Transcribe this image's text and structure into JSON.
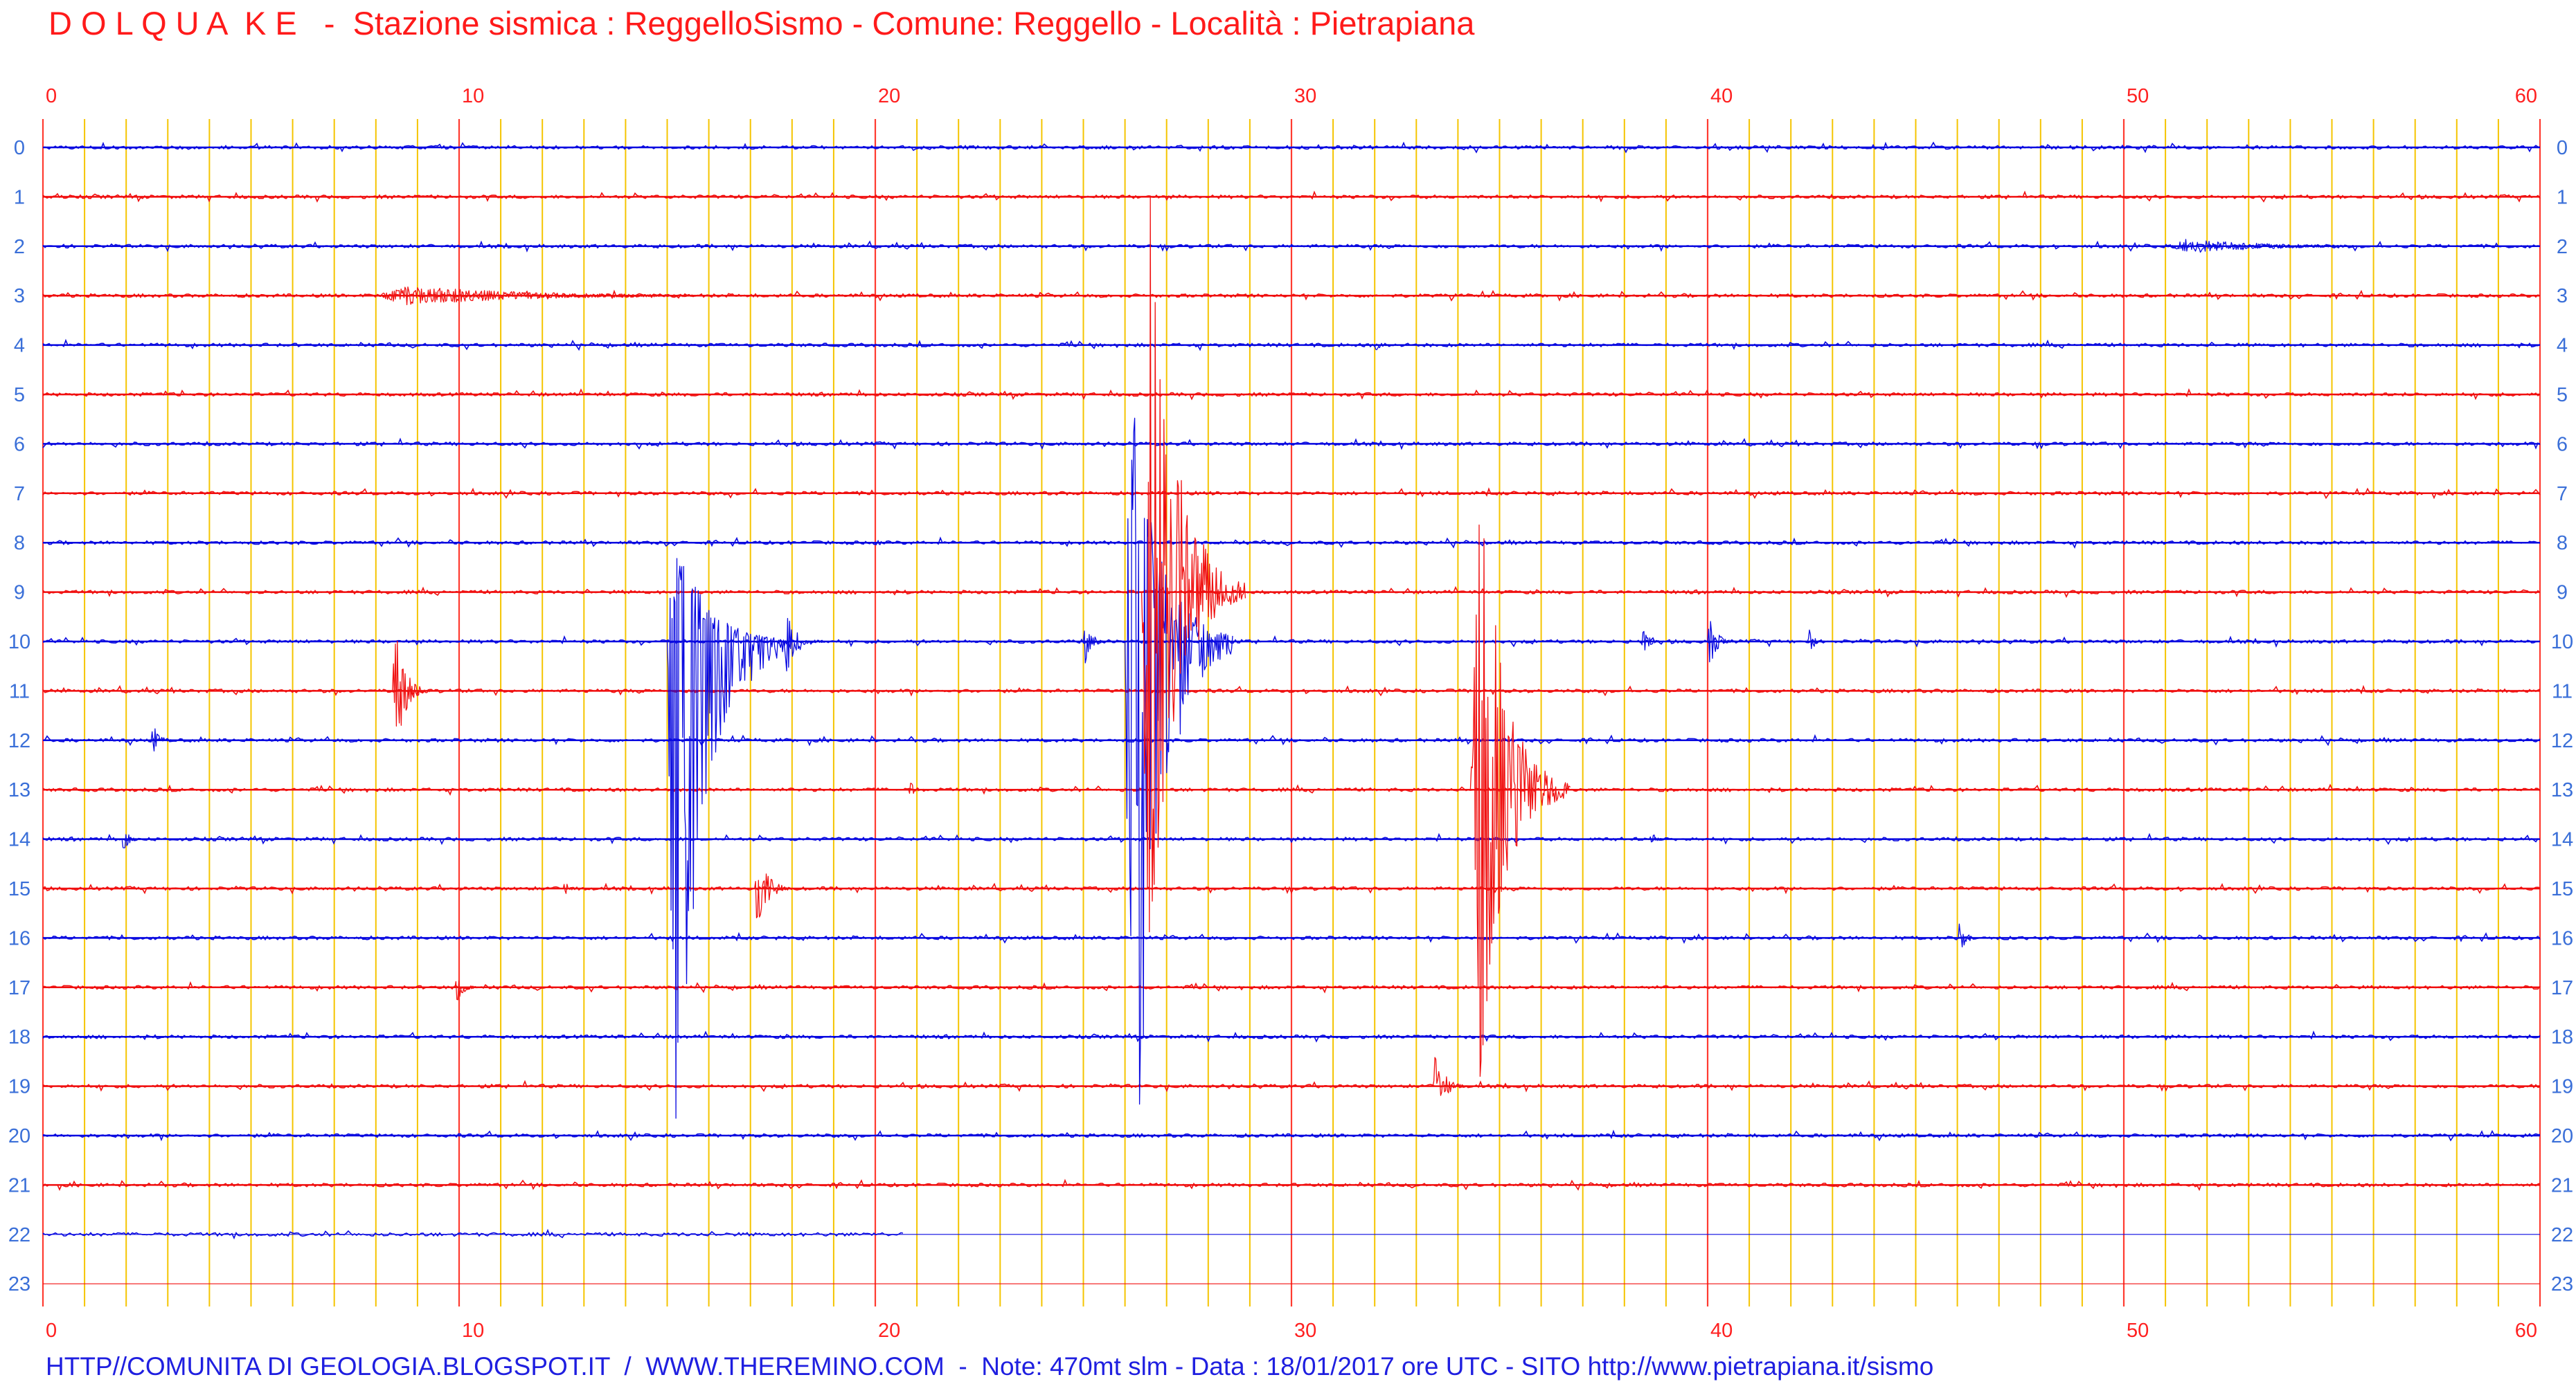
{
  "header": {
    "title": "D O L Q U A  K E   -  Stazione sismica : ReggelloSismo - Comune: Reggello - Località : Pietrapiana"
  },
  "footer": {
    "text": "HTTP//COMUNITA DI GEOLOGIA.BLOGSPOT.IT  /  WWW.THEREMINO.COM  -  Note: 470mt slm - Data : 18/01/2017 ore UTC - SITO http://www.pietrapiana.it/sismo"
  },
  "colors": {
    "even_trace": "#0a0ae0",
    "odd_trace": "#f01010",
    "minor_grid": "#f5c400",
    "major_grid": "#ff3b30",
    "axis_text_x": "#ff2020",
    "axis_text_y": "#3a6fd8"
  },
  "chart_data": {
    "type": "line",
    "chart_kind": "helicorder seismogram",
    "x_ticks": [
      "0",
      "10",
      "20",
      "30",
      "40",
      "50",
      "60"
    ],
    "xlim": [
      0,
      60
    ],
    "x_minor_step": 1,
    "rows": [
      "0",
      "1",
      "2",
      "3",
      "4",
      "5",
      "6",
      "7",
      "8",
      "9",
      "10",
      "11",
      "12",
      "13",
      "14",
      "15",
      "16",
      "17",
      "18",
      "19",
      "20",
      "21",
      "22",
      "23"
    ],
    "grid": true,
    "recorded_until": {
      "row": 22,
      "minute": 20.7
    },
    "events": [
      {
        "row": 10,
        "minute": 15.0,
        "amplitude": 6.0,
        "extent_up": 2.3,
        "extent_down": 10.7,
        "duration": 3.0,
        "trace_color": "even"
      },
      {
        "row": 10,
        "minute": 26.0,
        "amplitude": 5.2,
        "extent_up": 6.0,
        "extent_down": 12.9,
        "duration": 2.6,
        "trace_color": "even"
      },
      {
        "row": 9,
        "minute": 26.4,
        "amplitude": 4.5,
        "extent_up": 9.5,
        "extent_down": 8.0,
        "duration": 2.5,
        "trace_color": "odd"
      },
      {
        "row": 13,
        "minute": 34.3,
        "amplitude": 3.5,
        "extent_up": 7.5,
        "extent_down": 7.0,
        "duration": 2.4,
        "trace_color": "odd"
      },
      {
        "row": 11,
        "minute": 8.4,
        "amplitude": 1.5,
        "duration": 0.9,
        "trace_color": "odd"
      },
      {
        "row": 15,
        "minute": 17.1,
        "amplitude": 0.8,
        "duration": 1.0,
        "trace_color": "odd"
      },
      {
        "row": 19,
        "minute": 33.4,
        "amplitude": 0.7,
        "duration": 0.9,
        "trace_color": "odd"
      },
      {
        "row": 17,
        "minute": 9.9,
        "amplitude": 0.35,
        "duration": 0.6,
        "trace_color": "odd"
      },
      {
        "row": 12,
        "minute": 2.6,
        "amplitude": 0.35,
        "duration": 0.6,
        "trace_color": "even"
      },
      {
        "row": 14,
        "minute": 1.9,
        "amplitude": 0.28,
        "duration": 0.5,
        "trace_color": "even"
      },
      {
        "row": 16,
        "minute": 46.0,
        "amplitude": 0.3,
        "duration": 0.7,
        "trace_color": "even"
      },
      {
        "row": 10,
        "minute": 25.0,
        "amplitude": 0.5,
        "duration": 0.6,
        "trace_color": "even"
      },
      {
        "row": 10,
        "minute": 40.0,
        "amplitude": 0.55,
        "duration": 0.7,
        "trace_color": "even"
      },
      {
        "row": 10,
        "minute": 38.4,
        "amplitude": 0.3,
        "duration": 0.6,
        "trace_color": "even"
      },
      {
        "row": 10,
        "minute": 42.4,
        "amplitude": 0.3,
        "duration": 0.5,
        "trace_color": "even"
      },
      {
        "row": 10,
        "minute": 17.8,
        "amplitude": 0.7,
        "duration": 1.0,
        "trace_color": "even"
      },
      {
        "row": 13,
        "minute": 20.8,
        "amplitude": 0.2,
        "duration": 0.5,
        "trace_color": "odd"
      },
      {
        "row": 14,
        "minute": 38.6,
        "amplitude": 0.2,
        "duration": 0.5,
        "trace_color": "even"
      },
      {
        "row": 15,
        "minute": 12.5,
        "amplitude": 0.15,
        "duration": 0.5,
        "trace_color": "odd"
      },
      {
        "row": 2,
        "minute": 51.0,
        "amplitude": 0.15,
        "duration": 8.0,
        "trace_color": "even"
      },
      {
        "row": 3,
        "minute": 8.0,
        "amplitude": 0.2,
        "duration": 12.0,
        "trace_color": "odd"
      },
      {
        "row": 4,
        "minute": 32.0,
        "amplitude": 0.12,
        "duration": 0.5,
        "trace_color": "even"
      },
      {
        "row": 8,
        "minute": 20.0,
        "amplitude": 0.1,
        "duration": 0.5,
        "trace_color": "even"
      }
    ]
  }
}
